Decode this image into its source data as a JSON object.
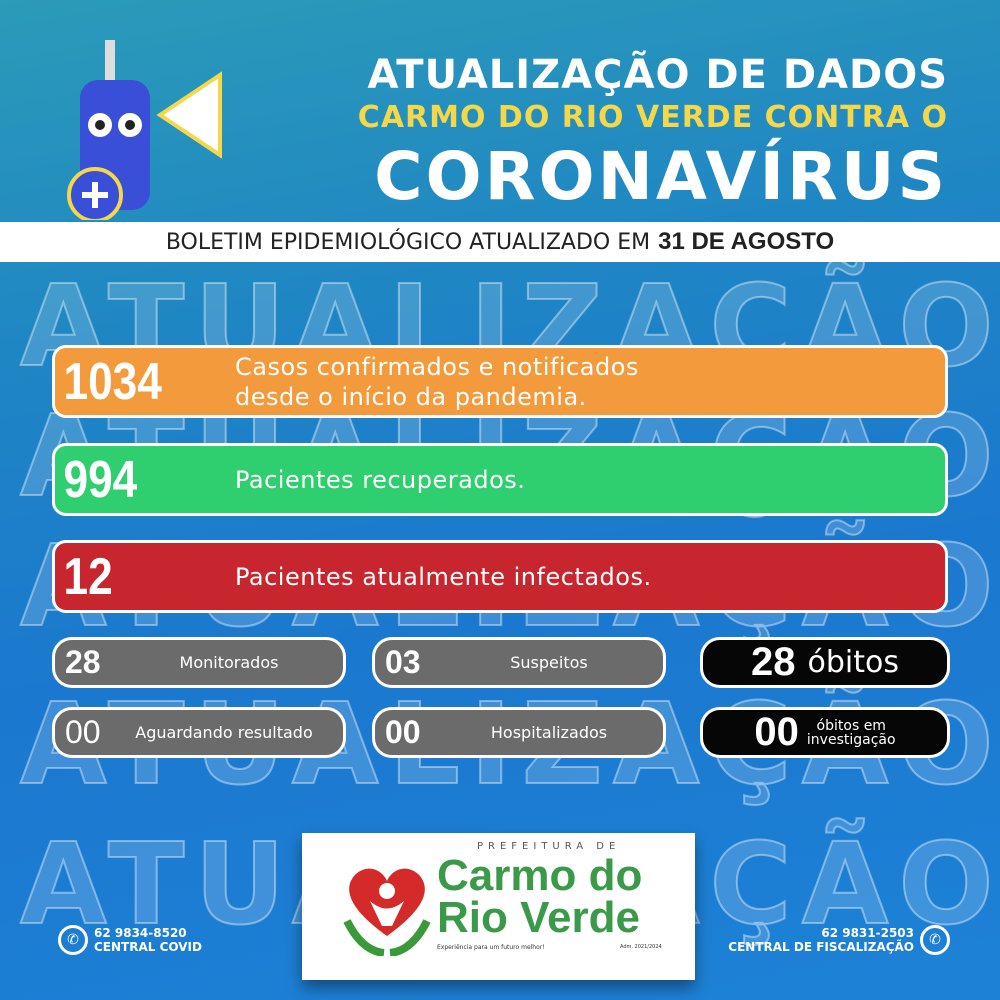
{
  "header": {
    "line1": "ATUALIZAÇÃO DE DADOS",
    "line2": "CARMO DO RIO VERDE CONTRA O",
    "line3": "CORONAVÍRUS"
  },
  "bulletin": {
    "text": "BOLETIM EPIDEMIOLÓGICO ATUALIZADO EM",
    "date": "31 DE AGOSTO"
  },
  "watermark": "ATUALIZAÇÃO",
  "bars": [
    {
      "value": "1034",
      "label_line1": "Casos confirmados e notificados",
      "label_line2": "desde o início da pandemia.",
      "color": "#f39a3c"
    },
    {
      "value": "994",
      "label_line1": "Pacientes recuperados.",
      "color": "#2fcf6f"
    },
    {
      "value": "12",
      "label_line1": "Pacientes atualmente infectados.",
      "color": "#c8262e"
    }
  ],
  "stats": {
    "monitorados": {
      "value": "28",
      "label": "Monitorados"
    },
    "suspeitos": {
      "value": "03",
      "label": "Suspeitos"
    },
    "obitos": {
      "value": "28",
      "label": "óbitos"
    },
    "aguardando": {
      "value": "00",
      "label": "Aguardando resultado"
    },
    "hospitalizados": {
      "value": "00",
      "label": "Hospitalizados"
    },
    "investigacao": {
      "value": "00",
      "label_line1": "óbitos em",
      "label_line2": "investigação"
    }
  },
  "logo": {
    "prefix": "PREFEITURA DE",
    "name_line1": "Carmo do",
    "name_line2": "Rio Verde",
    "slogan": "Experiência para um futuro melhor!",
    "term": "Adm. 2021/2024"
  },
  "contacts": [
    {
      "phone": "62 9834-8520",
      "label": "CENTRAL COVID",
      "icon": "whatsapp-icon"
    },
    {
      "phone": "62 9831-2503",
      "label": "CENTRAL DE FISCALIZAÇÃO",
      "icon": "whatsapp-icon"
    }
  ]
}
